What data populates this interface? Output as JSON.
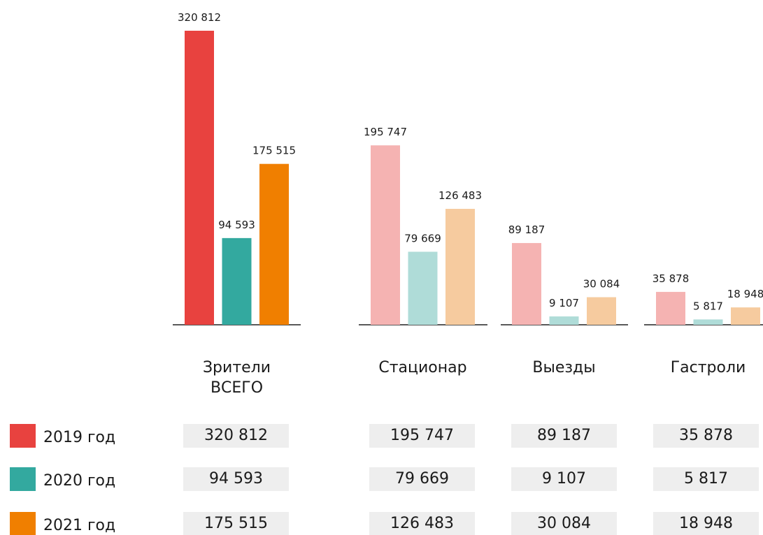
{
  "chart_data": {
    "type": "bar",
    "categories": [
      "Зрители ВСЕГО",
      "Стационар",
      "Выезды",
      "Гастроли"
    ],
    "series": [
      {
        "name": "2019 год",
        "color": "#e8423f",
        "light_color": "#f5b3b2",
        "values": [
          320812,
          195747,
          89187,
          35878
        ],
        "value_labels": [
          "320 812",
          "195 747",
          "89 187",
          "35 878"
        ]
      },
      {
        "name": "2020 год",
        "color": "#33a99f",
        "light_color": "#afdcd8",
        "values": [
          94593,
          79669,
          9107,
          5817
        ],
        "value_labels": [
          "94 593",
          "79 669",
          "9 107",
          "5 817"
        ]
      },
      {
        "name": "2021 год",
        "color": "#f07f00",
        "light_color": "#f6cb9f",
        "values": [
          175515,
          126483,
          30084,
          18948
        ],
        "value_labels": [
          "175 515",
          "126 483",
          "30 084",
          "18 948"
        ]
      }
    ]
  }
}
